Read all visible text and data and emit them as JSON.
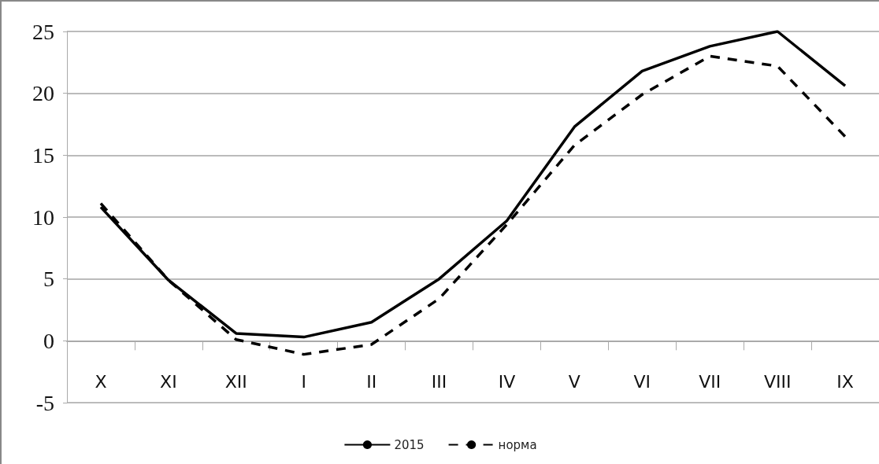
{
  "chart_data": {
    "type": "line",
    "categories": [
      "X",
      "XI",
      "XII",
      "I",
      "II",
      "III",
      "IV",
      "V",
      "VI",
      "VII",
      "VIII",
      "IX"
    ],
    "series": [
      {
        "name": "2015",
        "color": "#000000",
        "line_style": "solid",
        "values": [
          10.8,
          4.9,
          0.6,
          0.3,
          1.5,
          5.0,
          9.7,
          17.3,
          21.8,
          23.8,
          25.0,
          20.6
        ]
      },
      {
        "name": "норма",
        "color": "#000000",
        "line_style": "dashed",
        "values": [
          11.1,
          4.9,
          0.1,
          -1.1,
          -0.3,
          3.4,
          9.4,
          15.8,
          19.9,
          23.0,
          22.2,
          16.5
        ]
      }
    ],
    "ylim": [
      -5,
      25
    ],
    "yticks": [
      -5,
      0,
      5,
      10,
      15,
      20,
      25
    ],
    "grid": "y",
    "legend": "bottom",
    "marker": "none"
  }
}
